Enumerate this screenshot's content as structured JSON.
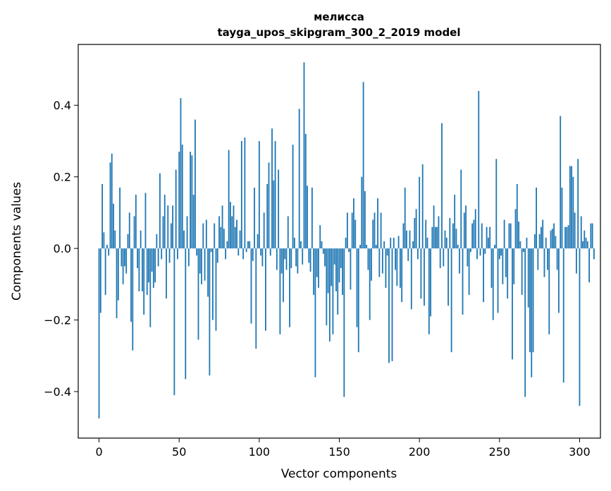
{
  "chart_data": {
    "type": "bar",
    "title": "мелисса",
    "subtitle": "tayga_upos_skipgram_300_2_2019 model",
    "xlabel": "Vector components",
    "ylabel": "Components values",
    "xlim": [
      -13,
      313
    ],
    "ylim": [
      -0.53,
      0.57
    ],
    "x_ticks": [
      0,
      50,
      100,
      150,
      200,
      250,
      300
    ],
    "x_tick_labels": [
      "0",
      "50",
      "100",
      "150",
      "200",
      "250",
      "300"
    ],
    "y_ticks": [
      -0.4,
      -0.2,
      0.0,
      0.2,
      0.4
    ],
    "y_tick_labels": [
      "−0.4",
      "−0.2",
      "0.0",
      "0.2",
      "0.4"
    ],
    "bar_color": "#1f77b4",
    "grid": false,
    "values": [
      -0.475,
      -0.18,
      0.18,
      0.045,
      -0.13,
      0.01,
      -0.02,
      0.24,
      0.265,
      0.125,
      0.05,
      -0.195,
      -0.145,
      0.17,
      -0.05,
      -0.1,
      -0.05,
      -0.07,
      0.04,
      0.1,
      -0.205,
      -0.285,
      0.09,
      0.15,
      -0.055,
      -0.12,
      0.05,
      -0.12,
      -0.185,
      0.155,
      -0.13,
      -0.095,
      -0.22,
      -0.065,
      -0.11,
      -0.095,
      0.04,
      -0.05,
      0.21,
      -0.03,
      0.09,
      0.15,
      -0.14,
      0.12,
      -0.04,
      0.07,
      0.12,
      -0.41,
      0.22,
      -0.03,
      0.27,
      0.42,
      0.29,
      0.05,
      -0.365,
      0.09,
      -0.05,
      0.27,
      0.26,
      0.15,
      0.36,
      -0.02,
      -0.255,
      -0.07,
      -0.1,
      0.07,
      -0.09,
      0.08,
      -0.135,
      -0.355,
      -0.01,
      -0.2,
      0.07,
      -0.23,
      -0.04,
      0.09,
      0.06,
      0.12,
      0.055,
      -0.03,
      0.02,
      0.275,
      0.13,
      0.09,
      0.12,
      0.06,
      0.08,
      -0.02,
      0.05,
      0.3,
      -0.03,
      0.31,
      -0.01,
      0.02,
      0.02,
      -0.21,
      -0.035,
      0.17,
      -0.28,
      0.04,
      0.3,
      -0.02,
      -0.05,
      0.1,
      -0.23,
      0.18,
      0.24,
      -0.02,
      0.335,
      0.19,
      0.3,
      -0.06,
      0.22,
      -0.24,
      -0.07,
      -0.15,
      -0.03,
      -0.06,
      0.09,
      -0.22,
      -0.055,
      0.29,
      0.03,
      -0.05,
      -0.07,
      0.39,
      0.02,
      -0.045,
      0.52,
      0.32,
      0.175,
      -0.04,
      -0.065,
      0.17,
      -0.13,
      -0.36,
      -0.08,
      -0.11,
      0.065,
      0.02,
      -0.015,
      -0.05,
      -0.215,
      -0.125,
      -0.26,
      -0.105,
      -0.24,
      -0.045,
      -0.12,
      -0.185,
      -0.095,
      -0.055,
      -0.13,
      -0.415,
      0.03,
      0.1,
      -0.01,
      -0.115,
      0.1,
      0.14,
      0.08,
      -0.22,
      -0.29,
      0.01,
      0.2,
      0.465,
      0.16,
      0.01,
      -0.06,
      -0.2,
      -0.09,
      0.08,
      0.1,
      0.01,
      0.14,
      -0.08,
      0.1,
      -0.07,
      0.02,
      -0.11,
      -0.02,
      -0.32,
      0.03,
      -0.315,
      0.03,
      -0.06,
      -0.105,
      0.035,
      -0.11,
      -0.15,
      0.07,
      0.17,
      0.05,
      -0.035,
      0.05,
      -0.17,
      0.02,
      0.085,
      0.11,
      -0.03,
      0.2,
      -0.14,
      0.235,
      -0.16,
      0.08,
      0.03,
      -0.24,
      -0.19,
      0.06,
      0.12,
      0.06,
      0.06,
      0.09,
      -0.055,
      0.35,
      -0.05,
      0.05,
      0.03,
      -0.16,
      0.085,
      -0.29,
      0.07,
      0.15,
      0.055,
      0.01,
      -0.07,
      0.22,
      -0.185,
      0.1,
      0.12,
      -0.05,
      -0.13,
      -0.01,
      0.07,
      0.08,
      0.11,
      -0.03,
      0.44,
      -0.02,
      0.07,
      -0.15,
      -0.015,
      0.06,
      0.03,
      0.06,
      -0.11,
      -0.2,
      0.01,
      0.25,
      -0.18,
      -0.03,
      -0.02,
      -0.1,
      0.08,
      -0.08,
      -0.14,
      0.07,
      0.07,
      -0.31,
      -0.1,
      0.11,
      0.18,
      0.075,
      0.02,
      -0.13,
      -0.01,
      -0.415,
      0.03,
      -0.165,
      -0.29,
      -0.36,
      -0.29,
      0.04,
      0.17,
      -0.06,
      0.04,
      0.06,
      0.08,
      -0.08,
      0.03,
      -0.06,
      -0.24,
      0.05,
      0.055,
      0.07,
      0.035,
      -0.06,
      -0.18,
      0.37,
      0.17,
      -0.375,
      0.06,
      0.06,
      0.065,
      0.23,
      0.23,
      0.2,
      0.1,
      -0.07,
      0.25,
      -0.44,
      0.09,
      0.02,
      0.05,
      0.03,
      0.02,
      -0.095,
      0.07,
      0.07,
      -0.03
    ]
  }
}
